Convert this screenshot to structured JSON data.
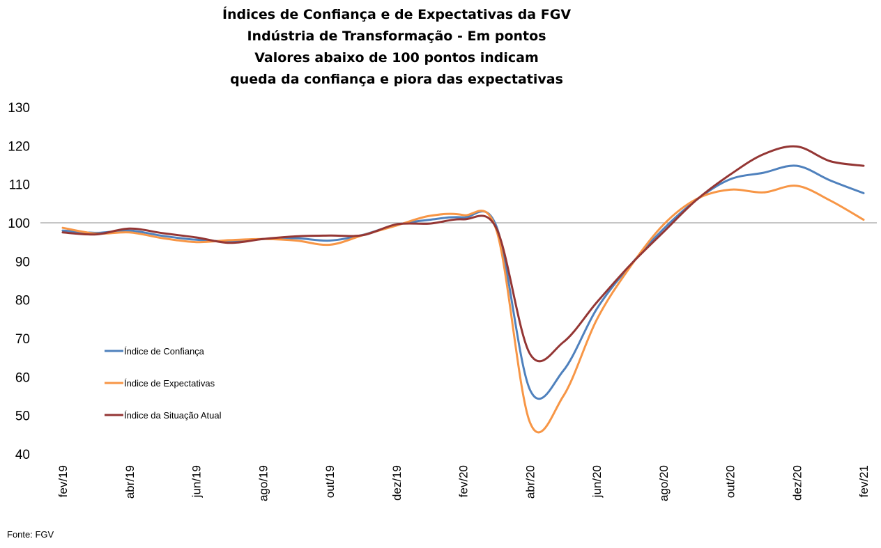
{
  "chart_data": {
    "type": "line",
    "title_lines": [
      "Índices de Confiança e de Expectativas da FGV",
      "Indústria de Transformação - Em pontos",
      "Valores abaixo de 100 pontos indicam",
      "queda da confiança e piora das expectativas"
    ],
    "ylim": [
      40,
      130
    ],
    "yticks": [
      40,
      50,
      60,
      70,
      80,
      90,
      100,
      110,
      120,
      130
    ],
    "reference_line": 100,
    "x": [
      "fev/19",
      "mar/19",
      "abr/19",
      "mai/19",
      "jun/19",
      "jul/19",
      "ago/19",
      "set/19",
      "out/19",
      "nov/19",
      "dez/19",
      "jan/20",
      "fev/20",
      "mar/20",
      "abr/20",
      "mai/20",
      "jun/20",
      "jul/20",
      "ago/20",
      "set/20",
      "out/20",
      "nov/20",
      "dez/20",
      "jan/21",
      "fev/21"
    ],
    "x_tick_labels": [
      "fev/19",
      "abr/19",
      "jun/19",
      "ago/19",
      "out/19",
      "dez/19",
      "fev/20",
      "abr/20",
      "jun/20",
      "ago/20",
      "out/20",
      "dez/20",
      "fev/21"
    ],
    "legend_position": "left",
    "series": [
      {
        "name": "Índice de Confiança",
        "color": "#4F81BD",
        "values": [
          98.0,
          97.4,
          98.0,
          96.6,
          95.6,
          95.2,
          95.8,
          96.0,
          95.4,
          96.9,
          99.5,
          100.8,
          101.4,
          99.0,
          56.7,
          61.6,
          77.6,
          88.9,
          98.4,
          106.0,
          111.3,
          113.0,
          114.8,
          111.0,
          107.7
        ]
      },
      {
        "name": "Índice de Expectativas",
        "color": "#F79646",
        "values": [
          98.7,
          97.2,
          97.5,
          96.0,
          95.0,
          95.5,
          95.8,
          95.4,
          94.3,
          96.8,
          99.3,
          101.8,
          102.0,
          98.0,
          48.2,
          55.0,
          74.8,
          88.5,
          99.5,
          106.2,
          108.6,
          107.9,
          109.6,
          105.8,
          100.8
        ]
      },
      {
        "name": "Índice da Situação Atual",
        "color": "#943634",
        "values": [
          97.5,
          97.0,
          98.5,
          97.3,
          96.2,
          94.8,
          95.8,
          96.5,
          96.7,
          96.8,
          99.6,
          99.8,
          100.9,
          98.5,
          66.0,
          69.0,
          79.3,
          89.0,
          97.6,
          106.0,
          112.5,
          117.8,
          119.8,
          116.0,
          114.8
        ]
      }
    ]
  },
  "source": "Fonte: FGV"
}
